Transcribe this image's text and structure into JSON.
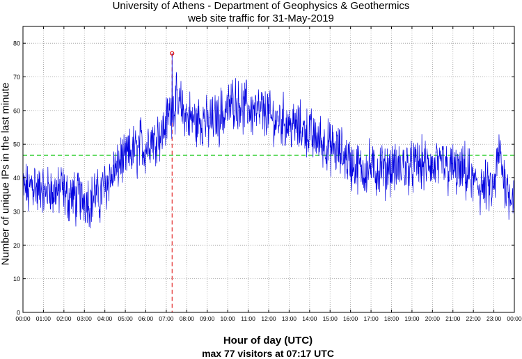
{
  "chart_data": {
    "type": "line",
    "title": "University of Athens - Department of Geophysics & Geothermics",
    "subtitle": "web site traffic for 31-May-2019",
    "xlabel": "Hour of day (UTC)",
    "ylabel": "Number of unique IPs in the last minute",
    "footnote": "max 77 visitors at 07:17 UTC",
    "xlim": [
      0,
      24
    ],
    "ylim": [
      0,
      85
    ],
    "yticks": [
      0,
      10,
      20,
      30,
      40,
      50,
      60,
      70,
      80
    ],
    "xtick_labels": [
      "00:00",
      "01:00",
      "02:00",
      "03:00",
      "04:00",
      "05:00",
      "06:00",
      "07:00",
      "08:00",
      "09:00",
      "10:00",
      "11:00",
      "12:00",
      "13:00",
      "14:00",
      "15:00",
      "16:00",
      "17:00",
      "18:00",
      "19:00",
      "20:00",
      "21:00",
      "22:00",
      "23:00",
      "00:00"
    ],
    "grid": true,
    "series": [
      {
        "name": "",
        "color": "#0000e0",
        "resolution_minutes": 5,
        "values": [
          37,
          36,
          38,
          35,
          36,
          39,
          37,
          40,
          36,
          35,
          38,
          37,
          36,
          34,
          37,
          36,
          38,
          35,
          34,
          37,
          36,
          35,
          38,
          37,
          36,
          34,
          35,
          33,
          36,
          34,
          35,
          33,
          34,
          36,
          33,
          34,
          34,
          33,
          35,
          32,
          34,
          33,
          36,
          34,
          35,
          33,
          36,
          37,
          38,
          37,
          40,
          41,
          39,
          42,
          43,
          41,
          44,
          45,
          46,
          44,
          45,
          47,
          46,
          48,
          47,
          49,
          48,
          47,
          49,
          51,
          50,
          48,
          49,
          50,
          52,
          51,
          53,
          50,
          52,
          54,
          53,
          52,
          54,
          55,
          57,
          58,
          60,
          59,
          62,
          61,
          63,
          60,
          62,
          61,
          59,
          60,
          58,
          57,
          59,
          56,
          58,
          57,
          55,
          58,
          57,
          56,
          58,
          57,
          56,
          55,
          58,
          57,
          56,
          59,
          58,
          57,
          60,
          59,
          58,
          61,
          60,
          62,
          61,
          63,
          62,
          64,
          61,
          63,
          62,
          60,
          61,
          62,
          60,
          61,
          59,
          60,
          61,
          58,
          60,
          59,
          61,
          58,
          59,
          60,
          59,
          58,
          57,
          58,
          56,
          57,
          58,
          56,
          57,
          58,
          55,
          57,
          56,
          55,
          57,
          54,
          56,
          55,
          54,
          56,
          53,
          55,
          54,
          53,
          54,
          53,
          51,
          52,
          53,
          50,
          52,
          51,
          50,
          51,
          49,
          50,
          49,
          48,
          50,
          47,
          49,
          48,
          47,
          48,
          46,
          47,
          45,
          46,
          44,
          43,
          45,
          42,
          43,
          44,
          42,
          43,
          41,
          43,
          42,
          44,
          43,
          42,
          44,
          41,
          43,
          42,
          44,
          43,
          41,
          42,
          44,
          43,
          42,
          44,
          43,
          41,
          44,
          42,
          43,
          45,
          42,
          44,
          43,
          44,
          42,
          44,
          43,
          45,
          44,
          42,
          45,
          43,
          44,
          43,
          45,
          44,
          43,
          42,
          45,
          44,
          41,
          43,
          46,
          42,
          44,
          41,
          43,
          42,
          44,
          42,
          41,
          43,
          40,
          42,
          41,
          43,
          39,
          42,
          40,
          38,
          39,
          37,
          40,
          38,
          36,
          39,
          35,
          38,
          37,
          36,
          38,
          35,
          37,
          40,
          44,
          48,
          46,
          42,
          40,
          38,
          37,
          35,
          36,
          35
        ],
        "peak": {
          "time": "07:17",
          "value": 77
        }
      }
    ],
    "reference_lines": [
      {
        "axis": "y",
        "value": 46.7,
        "color": "#22cc22",
        "style": "dashed"
      },
      {
        "axis": "x",
        "value": 7.2833,
        "color": "#dd0000",
        "style": "dashed"
      }
    ]
  }
}
